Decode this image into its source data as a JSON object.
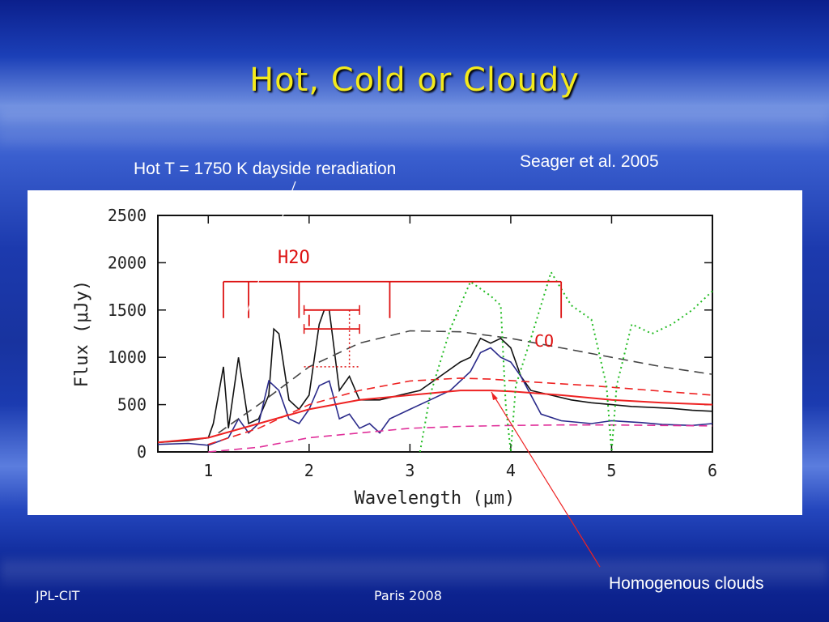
{
  "slide": {
    "title": "Hot, Cold or Cloudy",
    "citation": "Seager et al. 2005",
    "hot_label": "Hot T = 1750 K dayside reradiation",
    "cloud_label": "Homogenous clouds",
    "footer_left": "JPL-CIT",
    "footer_center": "Paris 2008"
  },
  "chart_data": {
    "type": "line",
    "xlabel": "Wavelength (μm)",
    "ylabel": "Flux (μJy)",
    "xlim": [
      0.5,
      6
    ],
    "ylim": [
      0,
      2500
    ],
    "xticks": [
      1,
      2,
      3,
      4,
      5,
      6
    ],
    "yticks": [
      0,
      500,
      1000,
      1500,
      2000,
      2500
    ],
    "grid": false,
    "annotations": [
      "H2O",
      "CO"
    ],
    "colors": {
      "black": "#111111",
      "navy": "#2a2a8a",
      "red": "#ee2222",
      "magenta": "#e0309a",
      "green": "#22bb22",
      "gray": "#444444",
      "annot": "#dd1111"
    },
    "series": [
      {
        "style": "black-solid",
        "x": [
          0.5,
          0.8,
          1.0,
          1.05,
          1.15,
          1.2,
          1.3,
          1.4,
          1.5,
          1.6,
          1.65,
          1.7,
          1.8,
          1.9,
          2.0,
          2.1,
          2.15,
          2.2,
          2.3,
          2.4,
          2.5,
          2.7,
          2.9,
          3.1,
          3.3,
          3.5,
          3.6,
          3.7,
          3.8,
          3.9,
          4.0,
          4.1,
          4.2,
          4.4,
          4.6,
          4.8,
          5.0,
          5.2,
          5.4,
          5.6,
          5.8,
          6.0
        ],
        "y": [
          100,
          120,
          150,
          300,
          900,
          250,
          1000,
          300,
          350,
          600,
          1300,
          1250,
          550,
          450,
          600,
          1350,
          1500,
          1500,
          650,
          800,
          550,
          550,
          600,
          650,
          800,
          950,
          1000,
          1200,
          1150,
          1200,
          1100,
          800,
          650,
          600,
          550,
          520,
          500,
          480,
          470,
          460,
          440,
          430
        ]
      },
      {
        "style": "navy-solid",
        "x": [
          0.5,
          0.8,
          1.0,
          1.2,
          1.3,
          1.4,
          1.5,
          1.6,
          1.7,
          1.8,
          1.9,
          2.0,
          2.1,
          2.2,
          2.3,
          2.4,
          2.5,
          2.6,
          2.7,
          2.8,
          3.0,
          3.2,
          3.4,
          3.6,
          3.7,
          3.8,
          3.9,
          4.0,
          4.1,
          4.3,
          4.5,
          4.8,
          5.0,
          5.3,
          5.5,
          5.8,
          6.0
        ],
        "y": [
          80,
          90,
          70,
          150,
          350,
          200,
          300,
          750,
          650,
          350,
          300,
          450,
          700,
          750,
          350,
          400,
          250,
          300,
          200,
          350,
          450,
          550,
          650,
          850,
          1050,
          1100,
          1000,
          950,
          800,
          400,
          330,
          300,
          330,
          310,
          290,
          280,
          300
        ]
      },
      {
        "style": "red-solid",
        "x": [
          0.5,
          1.0,
          1.5,
          2.0,
          2.5,
          3.0,
          3.5,
          3.8,
          4.0,
          4.5,
          5.0,
          5.5,
          6.0
        ],
        "y": [
          100,
          150,
          300,
          450,
          550,
          600,
          650,
          650,
          640,
          600,
          550,
          520,
          500
        ]
      },
      {
        "style": "red-dashed",
        "x": [
          1.0,
          1.5,
          2.0,
          2.5,
          3.0,
          3.5,
          3.8,
          4.2,
          4.8,
          5.4,
          6.0
        ],
        "y": [
          80,
          250,
          500,
          650,
          750,
          780,
          770,
          740,
          700,
          650,
          600
        ]
      },
      {
        "style": "magenta-dashed",
        "x": [
          1.0,
          1.5,
          2.0,
          2.5,
          3.0,
          3.5,
          4.0,
          4.5,
          5.0,
          5.5,
          6.0
        ],
        "y": [
          0,
          50,
          150,
          200,
          250,
          270,
          280,
          285,
          285,
          280,
          275
        ]
      },
      {
        "style": "gray-dashed",
        "x": [
          1.1,
          1.5,
          2.0,
          2.5,
          3.0,
          3.5,
          4.0,
          4.5,
          5.0,
          5.5,
          6.0
        ],
        "y": [
          200,
          500,
          900,
          1150,
          1280,
          1270,
          1200,
          1100,
          1000,
          900,
          820
        ]
      },
      {
        "style": "green-dotted",
        "x": [
          3.1,
          3.2,
          3.4,
          3.6,
          3.8,
          3.9,
          3.95,
          4.0,
          4.05,
          4.2,
          4.4,
          4.6,
          4.8,
          4.95,
          5.0,
          5.05,
          5.2,
          5.4,
          5.6,
          5.8,
          6.0
        ],
        "y": [
          0,
          600,
          1300,
          1800,
          1650,
          1550,
          500,
          0,
          700,
          1200,
          1900,
          1550,
          1400,
          700,
          0,
          700,
          1350,
          1250,
          1350,
          1500,
          1700
        ]
      }
    ],
    "h2o_bands": [
      {
        "x1": 1.15,
        "x2": 1.4,
        "y": 1800
      },
      {
        "x1": 1.4,
        "x2": 1.9,
        "y": 1800
      },
      {
        "x1": 1.9,
        "x2": 2.8,
        "y": 1800
      },
      {
        "x1": 2.8,
        "x2": 4.5,
        "y": 1800
      }
    ],
    "error_markers": [
      {
        "x1": 1.95,
        "x2": 2.5,
        "y": 1500
      },
      {
        "x1": 1.95,
        "x2": 2.5,
        "y": 1300
      }
    ]
  }
}
